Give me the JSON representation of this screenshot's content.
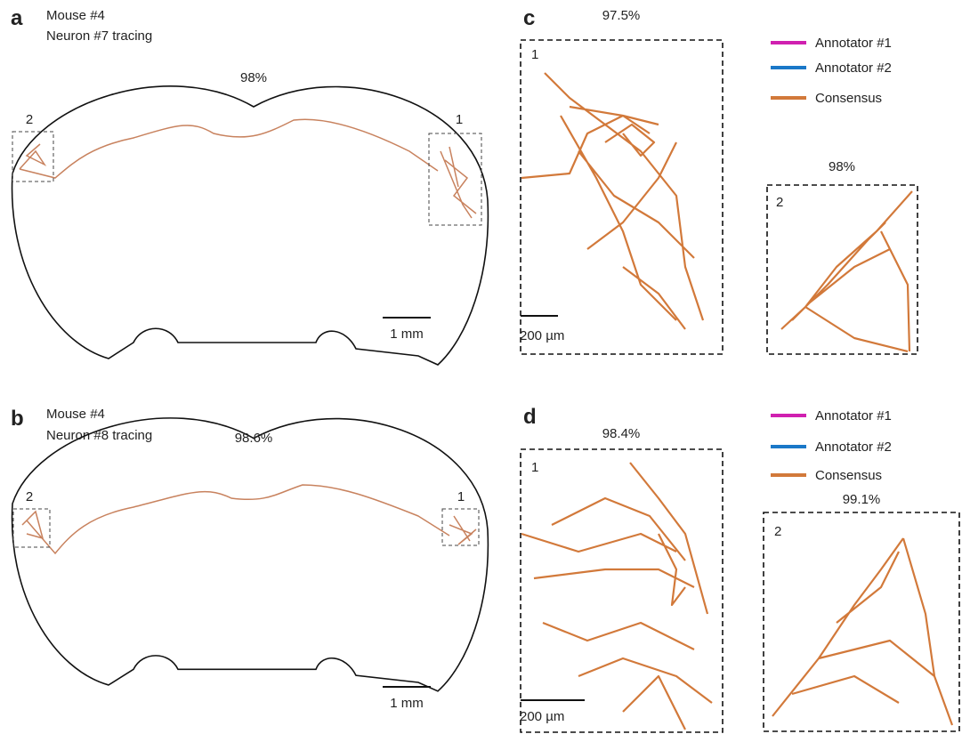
{
  "panels": [
    {
      "letter": "a",
      "lines": [
        "Mouse #4",
        "Neuron #7 tracing"
      ],
      "score": "98%",
      "regions": [
        "2",
        "1"
      ],
      "scale_bar": "1 mm"
    },
    {
      "letter": "b",
      "lines": [
        "Mouse #4",
        "Neuron #8 tracing"
      ],
      "score": "98.6%",
      "regions": [
        "2",
        "1"
      ],
      "scale_bar": "1 mm"
    },
    {
      "letter": "c",
      "zooms": [
        {
          "label": "1",
          "score": "97.5%",
          "scale_bar": "200 µm"
        },
        {
          "label": "2",
          "score": "98%"
        }
      ],
      "legend": [
        {
          "name": "Annotator #1",
          "color": "#d020b0"
        },
        {
          "name": "Annotator #2",
          "color": "#1a78c8"
        },
        {
          "name": "Consensus",
          "color": "#d2793a"
        }
      ]
    },
    {
      "letter": "d",
      "zooms": [
        {
          "label": "1",
          "score": "98.4%",
          "scale_bar": "200 µm"
        },
        {
          "label": "2",
          "score": "99.1%"
        }
      ],
      "legend": [
        {
          "name": "Annotator #1",
          "color": "#d020b0"
        },
        {
          "name": "Annotator #2",
          "color": "#1a78c8"
        },
        {
          "name": "Consensus",
          "color": "#d2793a"
        }
      ]
    }
  ]
}
